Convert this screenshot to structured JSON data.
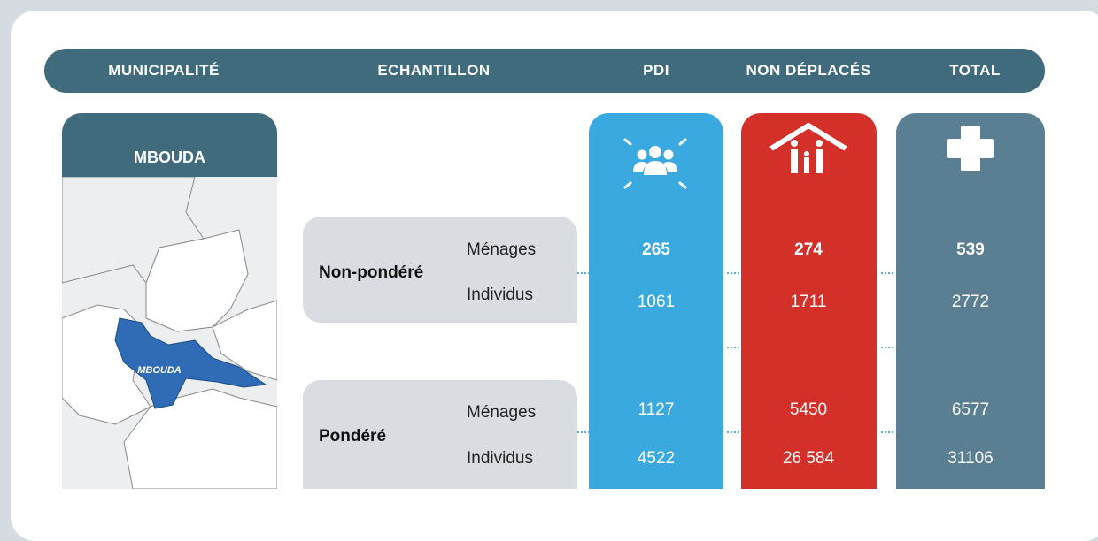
{
  "header": {
    "columns": [
      "MUNICIPALITÉ",
      "ECHANTILLON",
      "PDI",
      "NON DÉPLACÉS",
      "TOTAL"
    ]
  },
  "municipality": {
    "title": "MBOUDA",
    "map_label": "MBOUDA"
  },
  "table": {
    "groups": [
      {
        "label": "Non-pondéré",
        "rows": [
          {
            "label": "Ménages",
            "values": [
              "265",
              "274",
              "539"
            ]
          },
          {
            "label": "Individus",
            "values": [
              "1061",
              "1711",
              "2772"
            ]
          }
        ]
      },
      {
        "label": "Pondéré",
        "rows": [
          {
            "label": "Ménages",
            "values": [
              "1127",
              "5450",
              "6577"
            ]
          },
          {
            "label": "Individus",
            "values": [
              "4522",
              "26 584",
              "31106"
            ]
          }
        ]
      }
    ]
  }
}
